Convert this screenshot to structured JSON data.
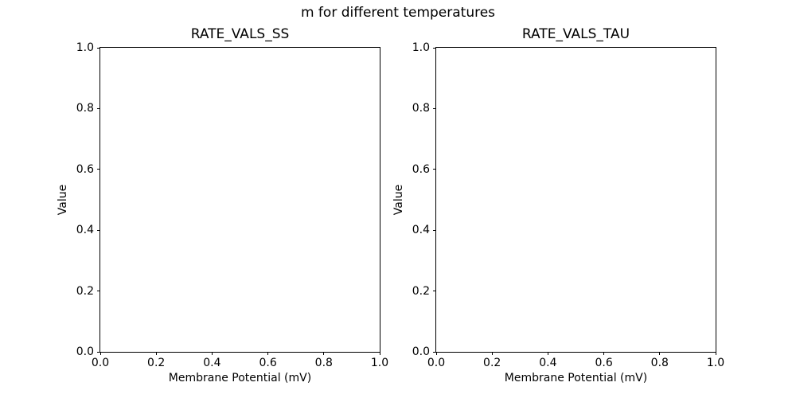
{
  "figure": {
    "suptitle": "m for different temperatures",
    "background_color": "#ffffff",
    "text_color": "#000000",
    "axes_edge_color": "#000000"
  },
  "chart_data": [
    {
      "type": "line",
      "title": "RATE_VALS_SS",
      "xlabel": "Membrane Potential (mV)",
      "ylabel": "Value",
      "xlim": [
        0.0,
        1.0
      ],
      "ylim": [
        0.0,
        1.0
      ],
      "xticks": [
        "0.0",
        "0.2",
        "0.4",
        "0.6",
        "0.8",
        "1.0"
      ],
      "yticks": [
        "0.0",
        "0.2",
        "0.4",
        "0.6",
        "0.8",
        "1.0"
      ],
      "grid": false,
      "legend": "none",
      "series": []
    },
    {
      "type": "line",
      "title": "RATE_VALS_TAU",
      "xlabel": "Membrane Potential (mV)",
      "ylabel": "Value",
      "xlim": [
        0.0,
        1.0
      ],
      "ylim": [
        0.0,
        1.0
      ],
      "xticks": [
        "0.0",
        "0.2",
        "0.4",
        "0.6",
        "0.8",
        "1.0"
      ],
      "yticks": [
        "0.0",
        "0.2",
        "0.4",
        "0.6",
        "0.8",
        "1.0"
      ],
      "grid": false,
      "legend": "none",
      "series": []
    }
  ]
}
